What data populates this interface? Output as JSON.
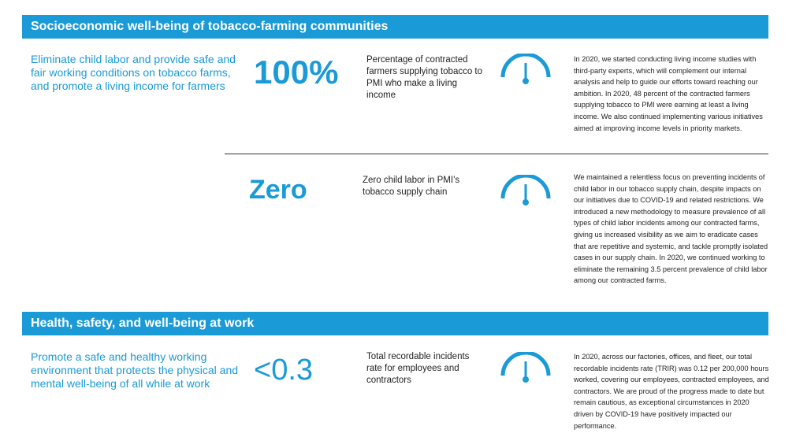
{
  "sections": [
    {
      "title": "Socioeconomic well-being of tobacco-farming communities",
      "goal": "Eliminate child labor and provide safe and fair working conditions on tobacco farms, and promote a living income for farmers",
      "rows": [
        {
          "value": "100%",
          "description": "Percentage of contracted farmers supplying tobacco to PMI who make a living income",
          "icon": "gauge-icon",
          "body": "In 2020, we started conducting living income studies with third-party experts, which will complement our internal analysis and help to guide our efforts toward reaching our ambition. In 2020, 48 percent of the contracted farmers supplying tobacco to PMI were earning at least a living income. We also continued implementing various initiatives aimed at improving income levels in priority markets."
        },
        {
          "value": "Zero",
          "description": "Zero child labor in PMI’s tobacco supply chain",
          "icon": "gauge-icon",
          "body": "We maintained a relentless focus on preventing incidents of child labor in our tobacco supply chain, despite impacts on our initiatives due to COVID-19 and related restrictions. We introduced a new methodology to measure prevalence of all types of child labor incidents among our contracted farms, giving us increased visibility as we aim to eradicate cases that are repetitive and systemic, and tackle promptly isolated cases in our supply chain. In 2020, we continued working to eliminate the remaining 3.5 percent prevalence of child labor among our contracted farms."
        }
      ]
    },
    {
      "title": "Health, safety, and well-being at work",
      "goal": "Promote a safe and healthy working environment that protects the physical and mental well-being of all while at work",
      "rows": [
        {
          "value": "<0.3",
          "description": "Total recordable incidents rate for employees and contractors",
          "icon": "gauge-icon",
          "body": "In 2020, across our factories, offices, and fleet, our total recordable incidents rate (TRIR) was 0.12 per 200,000 hours worked, covering our employees, contracted employees, and contractors. We are proud of the progress made to date but remain cautious, as exceptional circumstances in 2020 driven by COVID-19 have positively impacted our performance."
        }
      ]
    }
  ],
  "colors": {
    "accent": "#1a9ad6"
  }
}
